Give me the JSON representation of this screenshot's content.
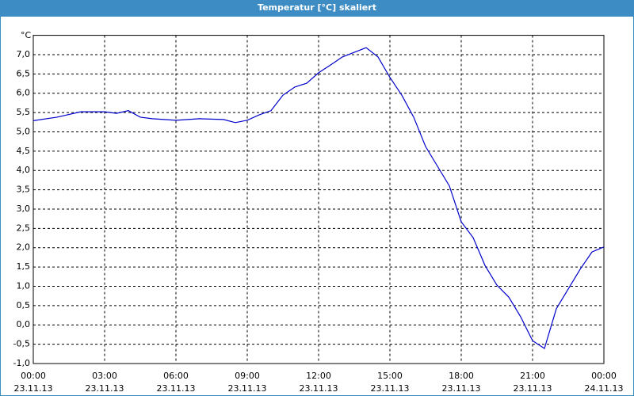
{
  "chart_data": {
    "type": "line",
    "title": "Temperatur [°C] skaliert",
    "y_label": "°C",
    "x": [
      0,
      1,
      2,
      3,
      3.5,
      4,
      4.5,
      5,
      6,
      7,
      8,
      8.5,
      9,
      9.5,
      10,
      10.5,
      11,
      11.5,
      12,
      12.5,
      13,
      13.5,
      14,
      14.5,
      15,
      15.5,
      16,
      16.5,
      17,
      17.5,
      18,
      18.5,
      19,
      19.5,
      20,
      20.5,
      21,
      21.5,
      22,
      22.5,
      23,
      23.5,
      24
    ],
    "series": [
      {
        "name": "Temperatur",
        "color": "#0000cc",
        "values": [
          5.29,
          5.38,
          5.52,
          5.52,
          5.48,
          5.55,
          5.38,
          5.34,
          5.3,
          5.34,
          5.32,
          5.24,
          5.3,
          5.44,
          5.55,
          5.95,
          6.16,
          6.26,
          6.53,
          6.73,
          6.94,
          7.06,
          7.18,
          6.94,
          6.41,
          5.95,
          5.38,
          4.62,
          4.11,
          3.6,
          2.67,
          2.26,
          1.54,
          1.03,
          0.72,
          0.21,
          -0.41,
          -0.61,
          0.42,
          0.93,
          1.44,
          1.89,
          2.02
        ]
      }
    ],
    "xlim": [
      0,
      24
    ],
    "xticks": [
      {
        "value": 0,
        "label": "00:00"
      },
      {
        "value": 3,
        "label": "03:00"
      },
      {
        "value": 6,
        "label": "06:00"
      },
      {
        "value": 9,
        "label": "09:00"
      },
      {
        "value": 12,
        "label": "12:00"
      },
      {
        "value": 15,
        "label": "15:00"
      },
      {
        "value": 18,
        "label": "18:00"
      },
      {
        "value": 21,
        "label": "21:00"
      },
      {
        "value": 24,
        "label": "00:00"
      }
    ],
    "xtick_dates": [
      "23.11.13",
      "23.11.13",
      "23.11.13",
      "23.11.13",
      "23.11.13",
      "23.11.13",
      "23.11.13",
      "23.11.13",
      "24.11.13"
    ],
    "ylim": [
      -1,
      7.5
    ],
    "yticks": [
      {
        "value": -1,
        "label": "-1,0"
      },
      {
        "value": -0.5,
        "label": "-0,5"
      },
      {
        "value": 0,
        "label": "0,0"
      },
      {
        "value": 0.5,
        "label": "0,5"
      },
      {
        "value": 1,
        "label": "1,0"
      },
      {
        "value": 1.5,
        "label": "1,5"
      },
      {
        "value": 2,
        "label": "2,0"
      },
      {
        "value": 2.5,
        "label": "2,5"
      },
      {
        "value": 3,
        "label": "3,0"
      },
      {
        "value": 3.5,
        "label": "3,5"
      },
      {
        "value": 4,
        "label": "4,0"
      },
      {
        "value": 4.5,
        "label": "4,5"
      },
      {
        "value": 5,
        "label": "5,0"
      },
      {
        "value": 5.5,
        "label": "5,5"
      },
      {
        "value": 6,
        "label": "6,0"
      },
      {
        "value": 6.5,
        "label": "6,5"
      },
      {
        "value": 7,
        "label": "7,0"
      }
    ],
    "grid": true
  }
}
